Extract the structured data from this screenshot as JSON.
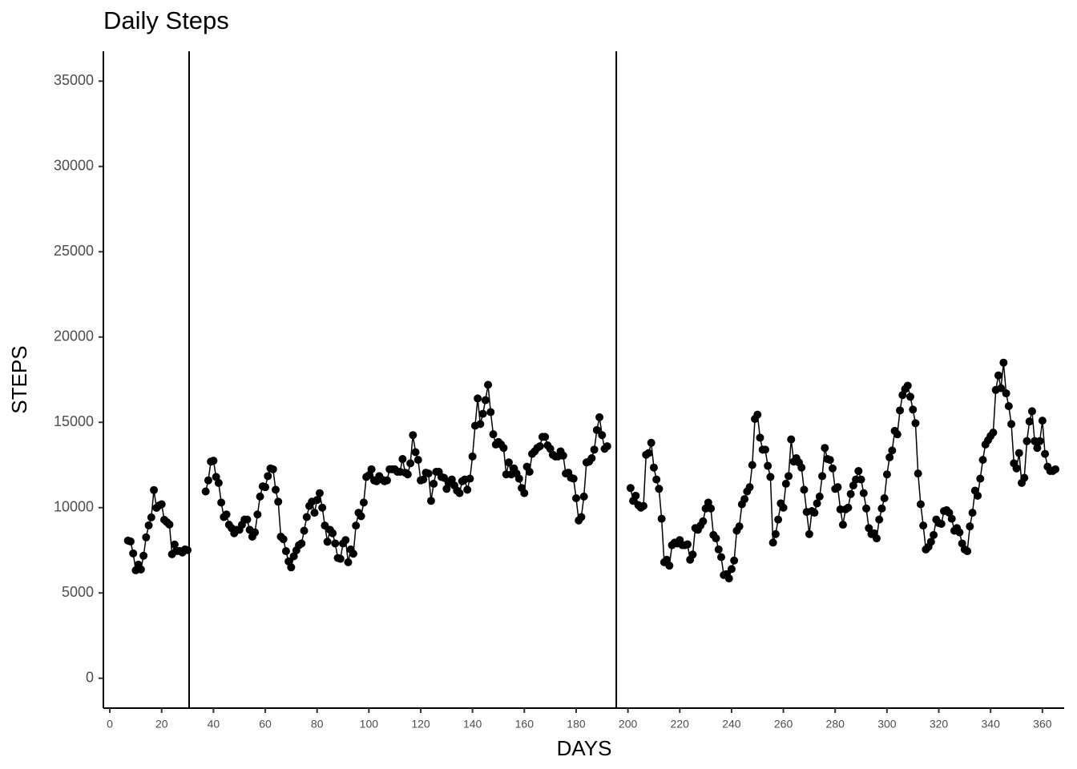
{
  "chart_data": {
    "type": "line",
    "title": "Daily Steps",
    "x_label": "DAYS",
    "y_label": "STEPS",
    "color": "#000000",
    "markers": true,
    "grid": false,
    "xlim": [
      -2.5,
      368.4
    ],
    "ylim": [
      -1750,
      36750
    ],
    "xticks": [
      0,
      20,
      40,
      60,
      80,
      100,
      120,
      140,
      160,
      180,
      200,
      220,
      240,
      260,
      280,
      300,
      320,
      340,
      360
    ],
    "yticks": [
      0,
      5000,
      10000,
      15000,
      20000,
      25000,
      30000,
      35000
    ],
    "vlines": [
      30.6,
      195.5
    ],
    "x": [
      7,
      8,
      9,
      10,
      11,
      12,
      13,
      14,
      15,
      16,
      17,
      18,
      19,
      20,
      21,
      22,
      23,
      24,
      25,
      26,
      27,
      28,
      29,
      30,
      31,
      32,
      33,
      34,
      35,
      36,
      37,
      38,
      39,
      40,
      41,
      42,
      43,
      44,
      45,
      46,
      47,
      48,
      49,
      50,
      51,
      52,
      53,
      54,
      55,
      56,
      57,
      58,
      59,
      60,
      61,
      62,
      63,
      64,
      65,
      66,
      67,
      68,
      69,
      70,
      71,
      72,
      73,
      74,
      75,
      76,
      77,
      78,
      79,
      80,
      81,
      82,
      83,
      84,
      85,
      86,
      87,
      88,
      89,
      90,
      91,
      92,
      93,
      94,
      95,
      96,
      97,
      98,
      99,
      100,
      101,
      102,
      103,
      104,
      105,
      106,
      107,
      108,
      109,
      110,
      111,
      112,
      113,
      114,
      115,
      116,
      117,
      118,
      119,
      120,
      121,
      122,
      123,
      124,
      125,
      126,
      127,
      128,
      129,
      130,
      131,
      132,
      133,
      134,
      135,
      136,
      137,
      138,
      139,
      140,
      141,
      142,
      143,
      144,
      145,
      146,
      147,
      148,
      149,
      150,
      151,
      152,
      153,
      154,
      155,
      156,
      157,
      158,
      159,
      160,
      161,
      162,
      163,
      164,
      165,
      166,
      167,
      168,
      169,
      170,
      171,
      172,
      173,
      174,
      175,
      176,
      177,
      178,
      179,
      180,
      181,
      182,
      183,
      184,
      185,
      186,
      187,
      188,
      189,
      190,
      191,
      192,
      193,
      194,
      195,
      196,
      197,
      198,
      199,
      200,
      201,
      202,
      203,
      204,
      205,
      206,
      207,
      208,
      209,
      210,
      211,
      212,
      213,
      214,
      215,
      216,
      217,
      218,
      219,
      220,
      221,
      222,
      223,
      224,
      225,
      226,
      227,
      228,
      229,
      230,
      231,
      232,
      233,
      234,
      235,
      236,
      237,
      238,
      239,
      240,
      241,
      242,
      243,
      244,
      245,
      246,
      247,
      248,
      249,
      250,
      251,
      252,
      253,
      254,
      255,
      256,
      257,
      258,
      259,
      260,
      261,
      262,
      263,
      264,
      265,
      266,
      267,
      268,
      269,
      270,
      271,
      272,
      273,
      274,
      275,
      276,
      277,
      278,
      279,
      280,
      281,
      282,
      283,
      284,
      285,
      286,
      287,
      288,
      289,
      290,
      291,
      292,
      293,
      294,
      295,
      296,
      297,
      298,
      299,
      300,
      301,
      302,
      303,
      304,
      305,
      306,
      307,
      308,
      309,
      310,
      311,
      312,
      313,
      314,
      315,
      316,
      317,
      318,
      319,
      320,
      321,
      322,
      323,
      324,
      325,
      326,
      327,
      328,
      329,
      330,
      331,
      332,
      333,
      334,
      335,
      336,
      337,
      338,
      339,
      340,
      341,
      342,
      343,
      344,
      345,
      346,
      347,
      348,
      349,
      350,
      351,
      352,
      353,
      354,
      355,
      356,
      357,
      358,
      359,
      360,
      361,
      362,
      363,
      364,
      365
    ],
    "values": [
      8070,
      8020,
      7320,
      6330,
      6660,
      6380,
      7180,
      8260,
      8960,
      9430,
      11030,
      9990,
      10130,
      10200,
      9290,
      9150,
      9010,
      7270,
      7840,
      7460,
      7460,
      7370,
      7550,
      7510,
      null,
      null,
      null,
      null,
      null,
      null,
      10950,
      11600,
      12700,
      12750,
      11800,
      11450,
      10300,
      9450,
      9600,
      9000,
      8800,
      8500,
      8700,
      8700,
      9000,
      9300,
      9300,
      8700,
      8300,
      8550,
      9600,
      10650,
      11250,
      11200,
      11850,
      12300,
      12250,
      11050,
      10350,
      8300,
      8150,
      7450,
      6850,
      6500,
      7150,
      7500,
      7800,
      7900,
      8650,
      9450,
      10100,
      10350,
      9700,
      10450,
      10850,
      10000,
      8950,
      8000,
      8700,
      8500,
      7900,
      7050,
      7000,
      7900,
      8100,
      6800,
      7550,
      7300,
      8950,
      9700,
      9500,
      10300,
      11800,
      11900,
      12250,
      11600,
      11550,
      11850,
      11650,
      11550,
      11600,
      12250,
      12250,
      12250,
      12100,
      12100,
      12850,
      12050,
      11950,
      12600,
      14250,
      13250,
      12800,
      11600,
      11650,
      12050,
      12000,
      10400,
      11400,
      12100,
      12100,
      11800,
      11750,
      11100,
      11450,
      11650,
      11300,
      11000,
      10850,
      11550,
      11650,
      11050,
      11700,
      13000,
      14800,
      16400,
      14900,
      15500,
      16300,
      17200,
      15600,
      14300,
      13700,
      13850,
      13700,
      13500,
      11950,
      12650,
      11950,
      12300,
      12000,
      11700,
      11150,
      10850,
      12400,
      12100,
      13150,
      13300,
      13500,
      13600,
      14150,
      14150,
      13650,
      13450,
      13100,
      13000,
      13000,
      13300,
      13050,
      12000,
      12050,
      11750,
      11700,
      10550,
      9250,
      9450,
      10650,
      12650,
      12700,
      12900,
      13400,
      14550,
      15300,
      14250,
      13450,
      13600,
      null,
      null,
      null,
      null,
      null,
      null,
      null,
      null,
      11150,
      10400,
      10700,
      10150,
      10000,
      10100,
      13100,
      13200,
      13800,
      12350,
      11650,
      11100,
      9350,
      6800,
      6950,
      6600,
      7800,
      7950,
      7900,
      8100,
      7800,
      7800,
      7850,
      6950,
      7250,
      8800,
      8700,
      8950,
      9200,
      9950,
      10300,
      9950,
      8400,
      8200,
      7550,
      7100,
      6050,
      6100,
      5850,
      6400,
      6900,
      8650,
      8900,
      10200,
      10500,
      10950,
      11200,
      12500,
      15200,
      15450,
      14100,
      13400,
      13400,
      12450,
      11800,
      7950,
      8450,
      9300,
      10250,
      10000,
      11400,
      11850,
      14000,
      12700,
      12900,
      12650,
      12350,
      11050,
      9750,
      8450,
      9800,
      9700,
      10250,
      10650,
      11850,
      13500,
      12850,
      12800,
      12300,
      11100,
      11200,
      9900,
      9000,
      9900,
      10000,
      10800,
      11300,
      11650,
      12150,
      11650,
      10850,
      9950,
      8800,
      8450,
      8500,
      8200,
      9300,
      9950,
      10550,
      11950,
      12950,
      13350,
      14500,
      14300,
      15700,
      16600,
      16950,
      17150,
      16500,
      15750,
      14950,
      12000,
      10200,
      8950,
      7550,
      7700,
      8000,
      8400,
      9300,
      9100,
      9050,
      9800,
      9850,
      9700,
      9350,
      8650,
      8800,
      8550,
      7900,
      7550,
      7450,
      8900,
      9700,
      11000,
      10700,
      11700,
      12800,
      13700,
      13950,
      14200,
      14400,
      16900,
      17750,
      17000,
      18500,
      16700,
      15950,
      14900,
      12600,
      12300,
      13200,
      11450,
      11750,
      13900,
      15050,
      15650,
      13900,
      13500,
      13900,
      15100,
      13150,
      12400,
      12150,
      12150,
      12250
    ]
  }
}
